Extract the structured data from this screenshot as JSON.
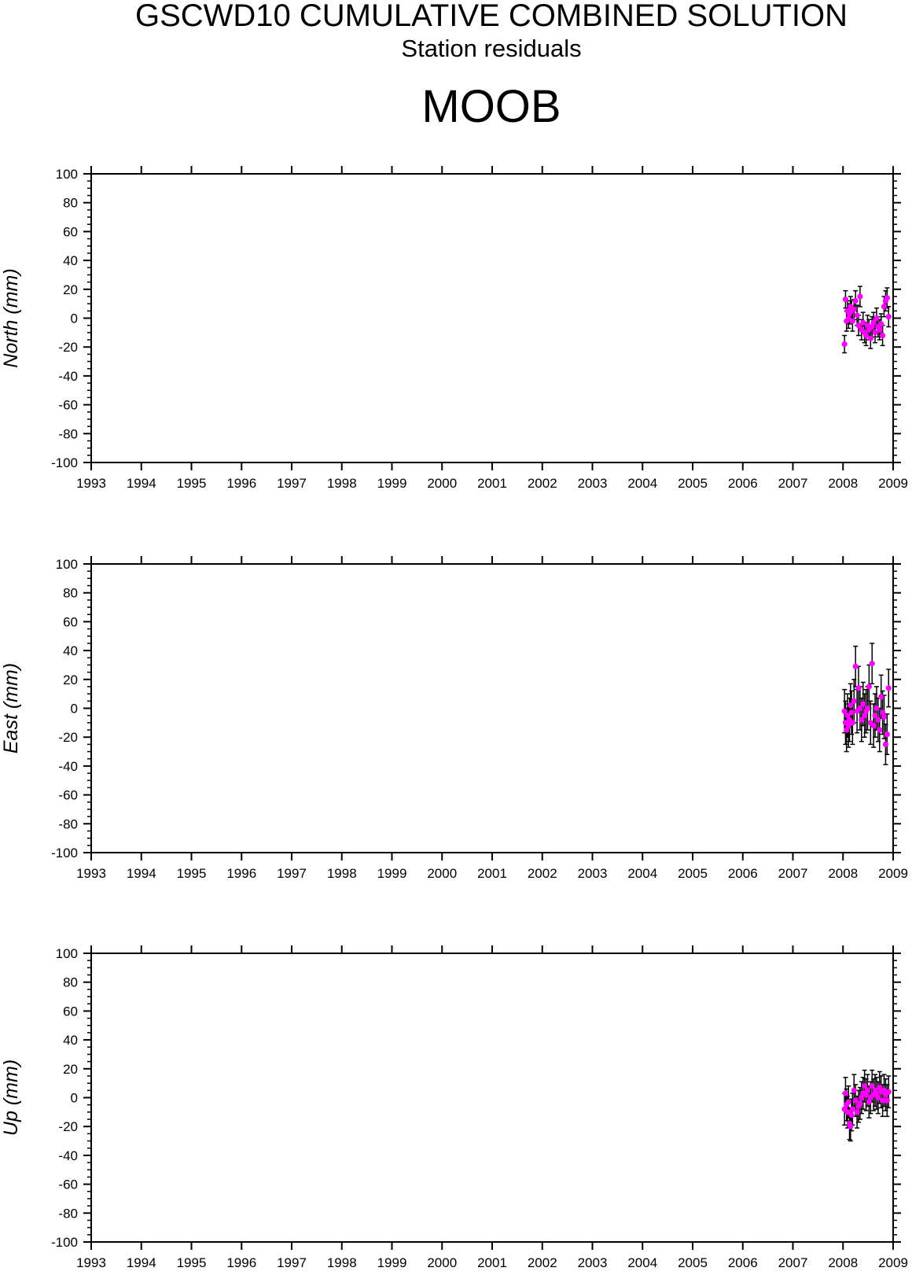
{
  "header": {
    "title": "GSCWD10 CUMULATIVE COMBINED SOLUTION",
    "subtitle": "Station residuals",
    "station": "MOOB"
  },
  "colors": {
    "marker": "#ff00ff",
    "errorbar": "#000000",
    "axis": "#000000"
  },
  "chart_data": [
    {
      "type": "scatter",
      "ylabel": "North (mm)",
      "xlim": [
        1993,
        2009
      ],
      "ylim": [
        -100,
        100
      ],
      "x_ticks": [
        "1993",
        "1994",
        "1995",
        "1996",
        "1997",
        "1998",
        "1999",
        "2000",
        "2001",
        "2002",
        "2003",
        "2004",
        "2005",
        "2006",
        "2007",
        "2008",
        "2009"
      ],
      "y_ticks": [
        "100",
        "80",
        "60",
        "40",
        "20",
        "0",
        "-20",
        "-40",
        "-60",
        "-80",
        "-100"
      ],
      "grid": false,
      "series": [
        {
          "x": [
            2008.03,
            2008.05,
            2008.07,
            2008.09,
            2008.11,
            2008.13,
            2008.15,
            2008.17,
            2008.19,
            2008.22,
            2008.25,
            2008.28,
            2008.31,
            2008.34,
            2008.37,
            2008.4,
            2008.43,
            2008.46,
            2008.49,
            2008.52,
            2008.55,
            2008.58,
            2008.61,
            2008.64,
            2008.67,
            2008.7,
            2008.73,
            2008.76,
            2008.79,
            2008.82,
            2008.85,
            2008.88,
            2008.91
          ],
          "y": [
            -18,
            13,
            -2,
            5,
            0,
            3,
            8,
            5,
            -2,
            6,
            12,
            2,
            -5,
            15,
            -8,
            -3,
            -10,
            -12,
            -5,
            -8,
            -14,
            -6,
            -3,
            -10,
            0,
            -6,
            -8,
            -4,
            -12,
            8,
            12,
            14,
            1
          ],
          "err": [
            6,
            6,
            7,
            7,
            7,
            7,
            7,
            7,
            7,
            7,
            7,
            7,
            7,
            7,
            7,
            7,
            7,
            7,
            7,
            7,
            7,
            7,
            7,
            7,
            7,
            7,
            7,
            7,
            7,
            7,
            7,
            7,
            7
          ]
        }
      ]
    },
    {
      "type": "scatter",
      "ylabel": "East (mm)",
      "xlim": [
        1993,
        2009
      ],
      "ylim": [
        -100,
        100
      ],
      "x_ticks": [
        "1993",
        "1994",
        "1995",
        "1996",
        "1997",
        "1998",
        "1999",
        "2000",
        "2001",
        "2002",
        "2003",
        "2004",
        "2005",
        "2006",
        "2007",
        "2008",
        "2009"
      ],
      "y_ticks": [
        "100",
        "80",
        "60",
        "40",
        "20",
        "0",
        "-20",
        "-40",
        "-60",
        "-80",
        "-100"
      ],
      "grid": false,
      "series": [
        {
          "x": [
            2008.03,
            2008.05,
            2008.07,
            2008.09,
            2008.11,
            2008.13,
            2008.15,
            2008.17,
            2008.19,
            2008.22,
            2008.25,
            2008.28,
            2008.31,
            2008.34,
            2008.37,
            2008.4,
            2008.43,
            2008.46,
            2008.49,
            2008.52,
            2008.55,
            2008.58,
            2008.61,
            2008.64,
            2008.67,
            2008.7,
            2008.73,
            2008.76,
            2008.79,
            2008.82,
            2008.85,
            2008.88,
            2008.91
          ],
          "y": [
            -2,
            -10,
            -15,
            -5,
            -12,
            -8,
            2,
            -3,
            -10,
            5,
            29,
            -2,
            14,
            0,
            -8,
            3,
            -5,
            -2,
            0,
            15,
            -10,
            31,
            -12,
            -5,
            0,
            -8,
            -15,
            8,
            -3,
            -6,
            -25,
            -18,
            14
          ],
          "err": [
            15,
            15,
            15,
            15,
            15,
            15,
            15,
            15,
            15,
            15,
            14,
            15,
            15,
            15,
            15,
            15,
            15,
            15,
            15,
            15,
            15,
            14,
            15,
            15,
            15,
            15,
            15,
            15,
            15,
            15,
            14,
            14,
            13
          ]
        }
      ]
    },
    {
      "type": "scatter",
      "ylabel": "Up (mm)",
      "xlim": [
        1993,
        2009
      ],
      "ylim": [
        -100,
        100
      ],
      "x_ticks": [
        "1993",
        "1994",
        "1995",
        "1996",
        "1997",
        "1998",
        "1999",
        "2000",
        "2001",
        "2002",
        "2003",
        "2004",
        "2005",
        "2006",
        "2007",
        "2008",
        "2009"
      ],
      "y_ticks": [
        "100",
        "80",
        "60",
        "40",
        "20",
        "0",
        "-20",
        "-40",
        "-60",
        "-80",
        "-100"
      ],
      "grid": false,
      "series": [
        {
          "x": [
            2008.03,
            2008.05,
            2008.07,
            2008.09,
            2008.11,
            2008.13,
            2008.15,
            2008.17,
            2008.19,
            2008.22,
            2008.25,
            2008.28,
            2008.31,
            2008.34,
            2008.37,
            2008.4,
            2008.43,
            2008.46,
            2008.49,
            2008.52,
            2008.55,
            2008.58,
            2008.61,
            2008.64,
            2008.67,
            2008.7,
            2008.73,
            2008.76,
            2008.79,
            2008.82,
            2008.85,
            2008.88,
            2008.91
          ],
          "y": [
            -8,
            3,
            -5,
            -10,
            -3,
            -18,
            -20,
            -12,
            -8,
            5,
            -2,
            -10,
            -6,
            -4,
            0,
            3,
            8,
            2,
            5,
            -3,
            0,
            8,
            2,
            5,
            3,
            0,
            7,
            4,
            -2,
            5,
            2,
            -2,
            4
          ],
          "err": [
            11,
            11,
            11,
            11,
            11,
            11,
            10,
            11,
            11,
            11,
            11,
            11,
            11,
            11,
            11,
            11,
            11,
            11,
            11,
            11,
            11,
            11,
            11,
            11,
            11,
            11,
            11,
            11,
            11,
            11,
            11,
            11,
            11
          ]
        }
      ]
    }
  ]
}
